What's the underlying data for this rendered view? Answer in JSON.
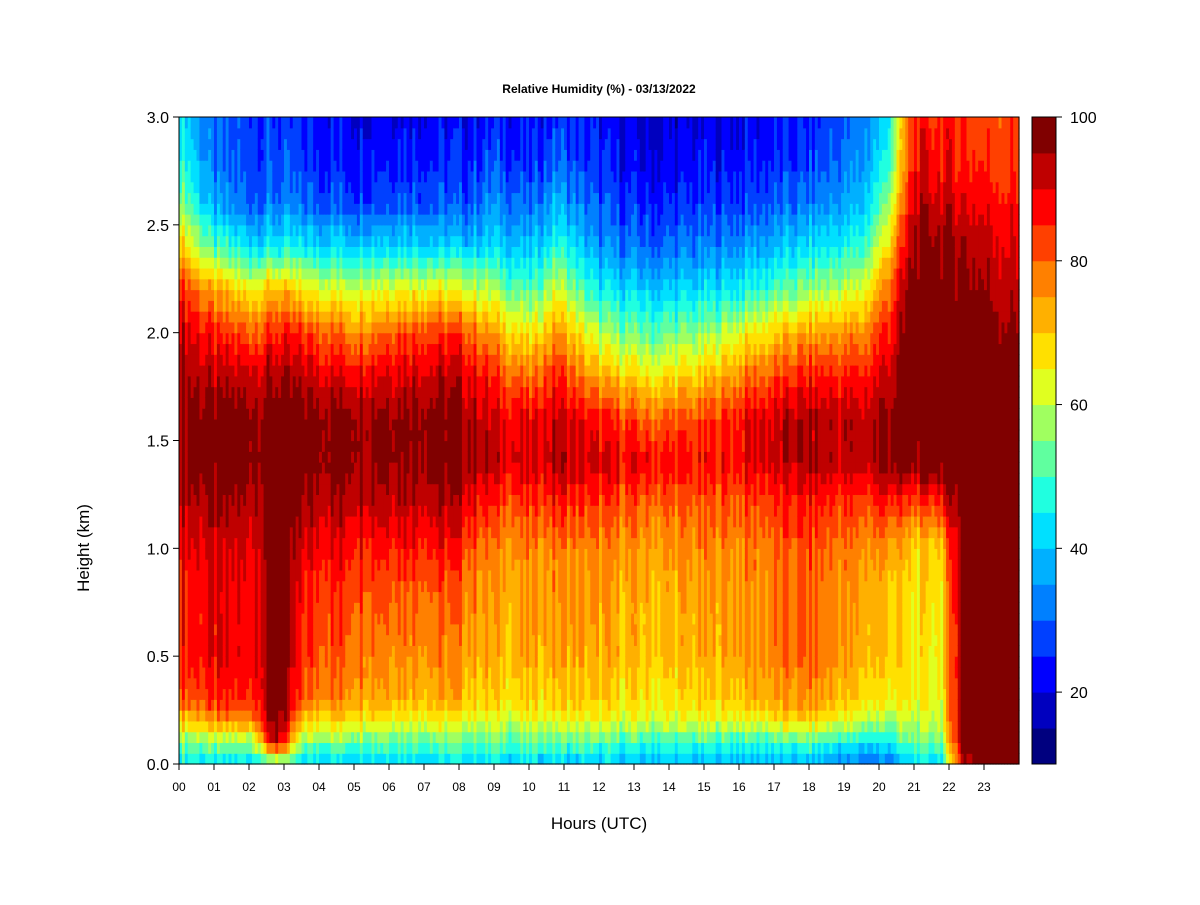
{
  "chart_data": {
    "type": "heatmap",
    "title": "Relative Humidity (%) - 03/13/2022",
    "xlabel": "Hours (UTC)",
    "ylabel": "Height (km)",
    "x_ticks": [
      "00",
      "01",
      "02",
      "03",
      "04",
      "05",
      "06",
      "07",
      "08",
      "09",
      "10",
      "11",
      "12",
      "13",
      "14",
      "15",
      "16",
      "17",
      "18",
      "19",
      "20",
      "21",
      "22",
      "23"
    ],
    "xlim": [
      0,
      24
    ],
    "y_ticks": [
      "0.0",
      "0.5",
      "1.0",
      "1.5",
      "2.0",
      "2.5",
      "3.0"
    ],
    "ylim": [
      0,
      3
    ],
    "colorbar": {
      "range": [
        10,
        100
      ],
      "step": 5,
      "tick_values": [
        20,
        40,
        60,
        80,
        100
      ],
      "tick_labels": [
        "20",
        "40",
        "60",
        "80",
        "100"
      ],
      "colors": [
        "#00007f",
        "#0000bf",
        "#0000ff",
        "#0040ff",
        "#0080ff",
        "#00b0ff",
        "#00e0ff",
        "#20ffe0",
        "#60ff9f",
        "#a0ff60",
        "#e0ff20",
        "#ffe000",
        "#ffb000",
        "#ff8000",
        "#ff4000",
        "#ff0000",
        "#bf0000",
        "#800000"
      ]
    },
    "profile_heights_km": [
      0,
      0.1,
      0.2,
      0.3,
      0.5,
      0.8,
      1.0,
      1.2,
      1.4,
      1.6,
      1.8,
      2.0,
      2.2,
      2.4,
      2.6,
      2.8,
      3.0
    ],
    "profiles": [
      {
        "hour": 0.0,
        "rh": [
          45,
          55,
          70,
          82,
          86,
          88,
          90,
          94,
          98,
          98,
          96,
          94,
          88,
          72,
          58,
          50,
          45
        ]
      },
      {
        "hour": 1.0,
        "rh": [
          42,
          55,
          74,
          84,
          88,
          88,
          90,
          94,
          98,
          98,
          92,
          84,
          72,
          50,
          35,
          30,
          28
        ]
      },
      {
        "hour": 2.0,
        "rh": [
          42,
          55,
          76,
          85,
          88,
          88,
          90,
          94,
          98,
          98,
          92,
          82,
          66,
          44,
          30,
          28,
          28
        ]
      },
      {
        "hour": 2.8,
        "rh": [
          50,
          95,
          100,
          100,
          100,
          100,
          100,
          100,
          100,
          99,
          95,
          86,
          72,
          44,
          32,
          28,
          26
        ]
      },
      {
        "hour": 3.5,
        "rh": [
          42,
          55,
          70,
          80,
          84,
          86,
          90,
          94,
          98,
          98,
          92,
          84,
          66,
          44,
          30,
          26,
          24
        ]
      },
      {
        "hour": 5.0,
        "rh": [
          42,
          54,
          68,
          76,
          80,
          84,
          88,
          94,
          98,
          98,
          90,
          78,
          62,
          42,
          28,
          24,
          22
        ]
      },
      {
        "hour": 6.5,
        "rh": [
          42,
          54,
          66,
          74,
          78,
          82,
          88,
          94,
          98,
          98,
          92,
          84,
          66,
          44,
          30,
          26,
          22
        ]
      },
      {
        "hour": 8.0,
        "rh": [
          42,
          52,
          64,
          72,
          76,
          80,
          86,
          92,
          98,
          98,
          92,
          84,
          64,
          40,
          28,
          24,
          22
        ]
      },
      {
        "hour": 9.0,
        "rh": [
          42,
          52,
          62,
          68,
          72,
          74,
          76,
          84,
          92,
          90,
          84,
          74,
          58,
          42,
          34,
          28,
          24
        ]
      },
      {
        "hour": 10.0,
        "rh": [
          40,
          52,
          62,
          68,
          72,
          74,
          76,
          82,
          90,
          88,
          78,
          64,
          50,
          38,
          30,
          24,
          22
        ]
      },
      {
        "hour": 10.8,
        "rh": [
          40,
          52,
          64,
          70,
          74,
          76,
          78,
          86,
          94,
          92,
          86,
          76,
          62,
          48,
          38,
          30,
          26
        ]
      },
      {
        "hour": 12.0,
        "rh": [
          40,
          50,
          62,
          68,
          72,
          74,
          76,
          82,
          90,
          86,
          72,
          58,
          44,
          34,
          28,
          24,
          22
        ]
      },
      {
        "hour": 13.5,
        "rh": [
          38,
          48,
          62,
          66,
          70,
          72,
          74,
          80,
          88,
          80,
          66,
          52,
          40,
          30,
          24,
          20,
          18
        ]
      },
      {
        "hour": 15.0,
        "rh": [
          38,
          48,
          62,
          68,
          72,
          74,
          76,
          80,
          86,
          82,
          70,
          56,
          42,
          32,
          26,
          22,
          20
        ]
      },
      {
        "hour": 16.5,
        "rh": [
          38,
          48,
          64,
          72,
          76,
          76,
          78,
          82,
          90,
          90,
          80,
          66,
          48,
          36,
          28,
          24,
          22
        ]
      },
      {
        "hour": 18.0,
        "rh": [
          38,
          50,
          68,
          76,
          80,
          80,
          82,
          86,
          94,
          94,
          86,
          74,
          56,
          42,
          32,
          26,
          24
        ]
      },
      {
        "hour": 19.5,
        "rh": [
          30,
          44,
          60,
          68,
          72,
          74,
          76,
          82,
          92,
          92,
          86,
          76,
          62,
          48,
          38,
          34,
          32
        ]
      },
      {
        "hour": 20.2,
        "rh": [
          30,
          44,
          58,
          66,
          70,
          72,
          76,
          86,
          98,
          96,
          92,
          86,
          78,
          66,
          55,
          46,
          42
        ]
      },
      {
        "hour": 21.0,
        "rh": [
          42,
          52,
          60,
          64,
          66,
          66,
          68,
          80,
          98,
          100,
          100,
          100,
          100,
          96,
          92,
          88,
          86
        ]
      },
      {
        "hour": 21.8,
        "rh": [
          42,
          56,
          62,
          64,
          66,
          68,
          70,
          86,
          100,
          100,
          100,
          100,
          100,
          98,
          92,
          88,
          86
        ]
      },
      {
        "hour": 22.4,
        "rh": [
          92,
          100,
          100,
          100,
          100,
          100,
          100,
          100,
          100,
          100,
          100,
          100,
          98,
          95,
          90,
          86,
          84
        ]
      },
      {
        "hour": 23.2,
        "rh": [
          100,
          100,
          100,
          100,
          100,
          100,
          100,
          100,
          100,
          100,
          100,
          98,
          95,
          92,
          88,
          84,
          82
        ]
      },
      {
        "hour": 24.0,
        "rh": [
          100,
          100,
          100,
          100,
          100,
          100,
          100,
          100,
          100,
          100,
          100,
          96,
          92,
          90,
          86,
          84,
          82
        ]
      }
    ]
  }
}
